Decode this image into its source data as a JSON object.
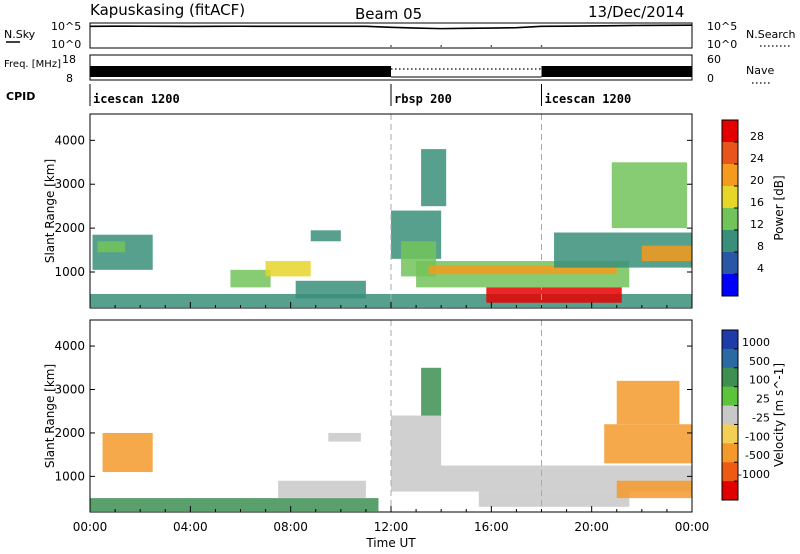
{
  "chart_data": [
    {
      "type": "line",
      "header": {
        "station": "Kapuskasing (fitACF)",
        "beam": "Beam 05",
        "date": "13/Dec/2014"
      },
      "left_label": "N.Sky",
      "right_label": "N.Search",
      "left_ticks": [
        "10^5",
        "10^0"
      ],
      "right_ticks": [
        "10^5",
        "10^0"
      ],
      "scale": "log",
      "series": [
        {
          "name": "N.Sky",
          "x": [
            0,
            1,
            2,
            3,
            4,
            5,
            6,
            7,
            8,
            9,
            10,
            11,
            12,
            13,
            14,
            15,
            16,
            17,
            18,
            19,
            20,
            21,
            22,
            23,
            24
          ],
          "y": [
            50000,
            55000,
            52000,
            50000,
            48000,
            50000,
            52000,
            50000,
            51000,
            50000,
            50000,
            50000,
            30000,
            20000,
            15000,
            18000,
            20000,
            25000,
            50000,
            55000,
            60000,
            70000,
            80000,
            85000,
            90000
          ]
        },
        {
          "name": "N.Search",
          "x": [
            12,
            14,
            16,
            18
          ],
          "y": [
            1,
            1,
            1,
            1
          ]
        }
      ]
    },
    {
      "type": "line",
      "left_label": "Freq. [MHz]",
      "right_label": "Nave",
      "left_ticks": [
        "18",
        "8"
      ],
      "right_ticks": [
        "60",
        "0"
      ],
      "freq_band_segments": [
        {
          "start_ut": 0,
          "end_ut": 12
        },
        {
          "start_ut": 18,
          "end_ut": 24
        }
      ],
      "nave_dotted_segment": {
        "start_ut": 12,
        "end_ut": 18
      }
    },
    {
      "type": "table",
      "label": "CPID",
      "segments": [
        {
          "name": "icescan 1200",
          "start_ut": 0,
          "end_ut": 12
        },
        {
          "name": "rbsp 200",
          "start_ut": 12,
          "end_ut": 18
        },
        {
          "name": "icescan 1200",
          "start_ut": 18,
          "end_ut": 24
        }
      ]
    },
    {
      "type": "heatmap",
      "ylabel": "Slant Range [km]",
      "yticks": [
        1000,
        2000,
        3000,
        4000
      ],
      "ylim": [
        180,
        4600
      ],
      "xlim": [
        0,
        24
      ],
      "colorbar": {
        "label": "Power [dB]",
        "ticks": [
          4,
          8,
          12,
          16,
          20,
          24,
          28
        ],
        "colors": [
          "#0000ff",
          "#2a56a6",
          "#3a8f7a",
          "#72c35a",
          "#e8d52a",
          "#f59a1c",
          "#e8541a",
          "#e50000"
        ]
      },
      "patches": [
        {
          "t0": 0.0,
          "t1": 24.0,
          "r0": 200,
          "r1": 500,
          "value": 8
        },
        {
          "t0": 0.1,
          "t1": 2.5,
          "r0": 1050,
          "r1": 1850,
          "value": 10
        },
        {
          "t0": 0.3,
          "t1": 1.4,
          "r0": 1450,
          "r1": 1700,
          "value": 14
        },
        {
          "t0": 5.6,
          "t1": 7.2,
          "r0": 650,
          "r1": 1050,
          "value": 12
        },
        {
          "t0": 7.0,
          "t1": 8.8,
          "r0": 900,
          "r1": 1250,
          "value": 18
        },
        {
          "t0": 8.2,
          "t1": 11.0,
          "r0": 400,
          "r1": 800,
          "value": 10
        },
        {
          "t0": 8.8,
          "t1": 10.0,
          "r0": 1700,
          "r1": 1950,
          "value": 8
        },
        {
          "t0": 12.0,
          "t1": 14.0,
          "r0": 1300,
          "r1": 2400,
          "value": 8
        },
        {
          "t0": 12.4,
          "t1": 13.8,
          "r0": 900,
          "r1": 1700,
          "value": 14
        },
        {
          "t0": 13.0,
          "t1": 21.5,
          "r0": 650,
          "r1": 1250,
          "value": 14
        },
        {
          "t0": 13.5,
          "t1": 21.0,
          "r0": 950,
          "r1": 1150,
          "value": 22
        },
        {
          "t0": 15.8,
          "t1": 21.2,
          "r0": 300,
          "r1": 650,
          "value": 28
        },
        {
          "t0": 13.2,
          "t1": 14.2,
          "r0": 2500,
          "r1": 3800,
          "value": 8
        },
        {
          "t0": 18.5,
          "t1": 24.0,
          "r0": 1100,
          "r1": 1900,
          "value": 10
        },
        {
          "t0": 20.8,
          "t1": 23.8,
          "r0": 2000,
          "r1": 3500,
          "value": 12
        },
        {
          "t0": 22.0,
          "t1": 24.0,
          "r0": 1250,
          "r1": 1600,
          "value": 20
        }
      ]
    },
    {
      "type": "heatmap",
      "ylabel": "Slant Range [km]",
      "yticks": [
        1000,
        2000,
        3000,
        4000
      ],
      "ylim": [
        180,
        4600
      ],
      "xlim": [
        0,
        24
      ],
      "xticks": [
        "00:00",
        "04:00",
        "08:00",
        "12:00",
        "16:00",
        "20:00",
        "00:00"
      ],
      "xlabel": "Time UT",
      "colorbar": {
        "label": "Velocity [m s^-1]",
        "ticks": [
          "1000",
          "500",
          "100",
          "25",
          "-25",
          "-100",
          "-500",
          "-1000"
        ],
        "colors": [
          "#1e3ca8",
          "#2a6aa2",
          "#3d8f52",
          "#5cc43a",
          "#c8c8c8",
          "#f4cf55",
          "#f39a2a",
          "#ee5a14",
          "#e00000"
        ]
      },
      "patches": [
        {
          "t0": 0.0,
          "t1": 11.5,
          "r0": 200,
          "r1": 500,
          "value": 120
        },
        {
          "t0": 0.5,
          "t1": 2.5,
          "r0": 1100,
          "r1": 2000,
          "value": -200
        },
        {
          "t0": 7.5,
          "t1": 11.0,
          "r0": 500,
          "r1": 900,
          "value": 20
        },
        {
          "t0": 9.5,
          "t1": 10.8,
          "r0": 1800,
          "r1": 2000,
          "value": 0
        },
        {
          "t0": 12.0,
          "t1": 24.0,
          "r0": 650,
          "r1": 1250,
          "value": 0
        },
        {
          "t0": 12.0,
          "t1": 14.0,
          "r0": 1250,
          "r1": 2400,
          "value": 0
        },
        {
          "t0": 15.5,
          "t1": 21.5,
          "r0": 300,
          "r1": 650,
          "value": 5
        },
        {
          "t0": 13.2,
          "t1": 14.0,
          "r0": 2400,
          "r1": 3500,
          "value": 250
        },
        {
          "t0": 20.5,
          "t1": 24.0,
          "r0": 1300,
          "r1": 2200,
          "value": -400
        },
        {
          "t0": 21.0,
          "t1": 23.5,
          "r0": 2200,
          "r1": 3200,
          "value": -150
        },
        {
          "t0": 21.0,
          "t1": 24.0,
          "r0": 500,
          "r1": 900,
          "value": -120
        }
      ]
    }
  ]
}
